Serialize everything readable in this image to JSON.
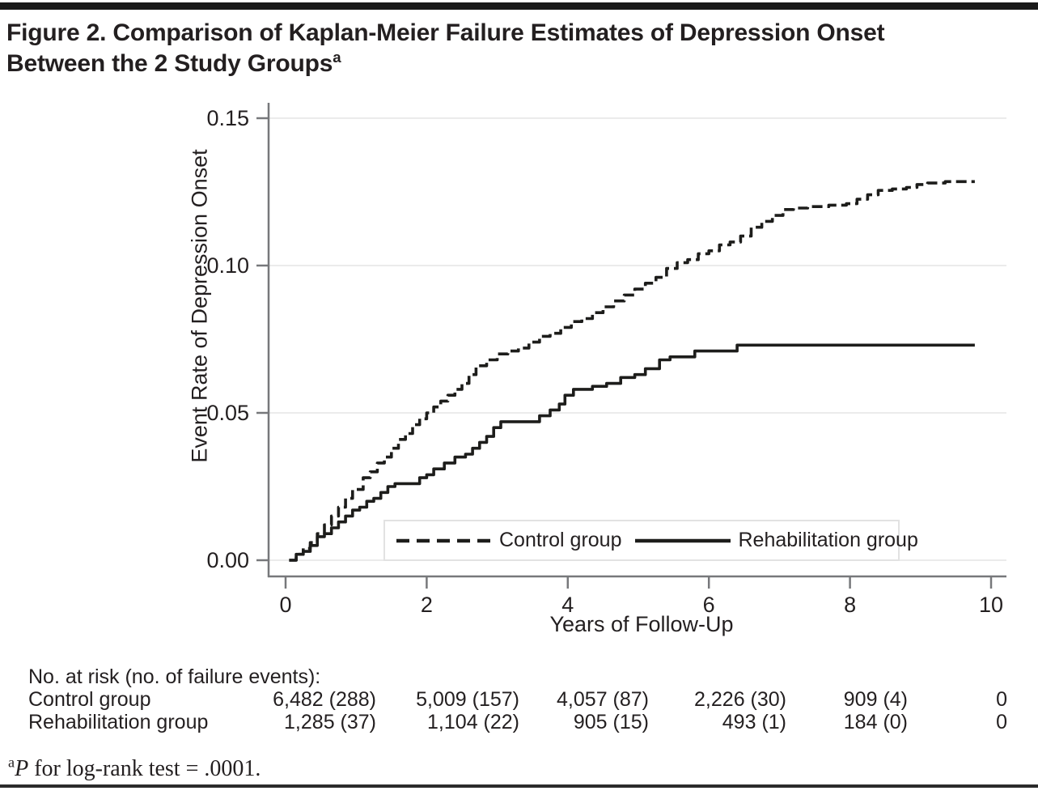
{
  "figure": {
    "title_line1": "Figure 2. Comparison of Kaplan-Meier Failure Estimates of Depression Onset",
    "title_line2": "Between the 2 Study Groups",
    "title_superscript": "a",
    "footnote": {
      "superscript": "a",
      "italic": "P",
      "text": " for log-rank test = .0001."
    }
  },
  "chart_data": {
    "type": "line",
    "variant": "kaplan-meier-failure-step",
    "xlabel": "Years of Follow-Up",
    "ylabel": "Event Rate of Depression Onset",
    "xlim": [
      0,
      10
    ],
    "ylim": [
      0,
      0.15
    ],
    "grid": "horizontal-light",
    "x_ticks": [
      {
        "value": 0,
        "label": "0"
      },
      {
        "value": 2,
        "label": "2"
      },
      {
        "value": 4,
        "label": "4"
      },
      {
        "value": 6,
        "label": "6"
      },
      {
        "value": 8,
        "label": "8"
      },
      {
        "value": 10,
        "label": "10"
      }
    ],
    "y_ticks": [
      {
        "value": 0.0,
        "label": "0.00"
      },
      {
        "value": 0.05,
        "label": "0.05"
      },
      {
        "value": 0.1,
        "label": "0.10"
      },
      {
        "value": 0.15,
        "label": "0.15"
      }
    ],
    "legend": {
      "position": "inside-bottom-boxed",
      "entries": [
        {
          "label": "Control group",
          "line_style": "dashed"
        },
        {
          "label": "Rehabilitation group",
          "line_style": "solid"
        }
      ]
    },
    "series": [
      {
        "name": "Control group",
        "line_style": "dashed",
        "color": "#1d1d1b",
        "points": [
          [
            0.05,
            0.0
          ],
          [
            0.15,
            0.002
          ],
          [
            0.25,
            0.004
          ],
          [
            0.35,
            0.006
          ],
          [
            0.45,
            0.009
          ],
          [
            0.55,
            0.012
          ],
          [
            0.65,
            0.015
          ],
          [
            0.75,
            0.018
          ],
          [
            0.85,
            0.021
          ],
          [
            0.95,
            0.024
          ],
          [
            1.1,
            0.028
          ],
          [
            1.2,
            0.03
          ],
          [
            1.3,
            0.033
          ],
          [
            1.4,
            0.035
          ],
          [
            1.5,
            0.038
          ],
          [
            1.6,
            0.041
          ],
          [
            1.7,
            0.043
          ],
          [
            1.8,
            0.046
          ],
          [
            1.9,
            0.048
          ],
          [
            2.0,
            0.05
          ],
          [
            2.1,
            0.052
          ],
          [
            2.2,
            0.054
          ],
          [
            2.3,
            0.056
          ],
          [
            2.4,
            0.058
          ],
          [
            2.5,
            0.06
          ],
          [
            2.6,
            0.063
          ],
          [
            2.7,
            0.066
          ],
          [
            2.85,
            0.068
          ],
          [
            3.0,
            0.07
          ],
          [
            3.15,
            0.071
          ],
          [
            3.3,
            0.072
          ],
          [
            3.45,
            0.074
          ],
          [
            3.6,
            0.076
          ],
          [
            3.75,
            0.077
          ],
          [
            3.9,
            0.079
          ],
          [
            4.05,
            0.081
          ],
          [
            4.2,
            0.082
          ],
          [
            4.35,
            0.084
          ],
          [
            4.5,
            0.086
          ],
          [
            4.65,
            0.088
          ],
          [
            4.8,
            0.09
          ],
          [
            4.95,
            0.092
          ],
          [
            5.1,
            0.094
          ],
          [
            5.25,
            0.096
          ],
          [
            5.4,
            0.099
          ],
          [
            5.55,
            0.101
          ],
          [
            5.7,
            0.102
          ],
          [
            5.85,
            0.104
          ],
          [
            6.0,
            0.105
          ],
          [
            6.15,
            0.107
          ],
          [
            6.3,
            0.108
          ],
          [
            6.45,
            0.11
          ],
          [
            6.6,
            0.113
          ],
          [
            6.75,
            0.115
          ],
          [
            6.9,
            0.117
          ],
          [
            7.05,
            0.119
          ],
          [
            7.2,
            0.1195
          ],
          [
            7.4,
            0.12
          ],
          [
            7.7,
            0.1205
          ],
          [
            7.95,
            0.121
          ],
          [
            8.1,
            0.1225
          ],
          [
            8.25,
            0.124
          ],
          [
            8.4,
            0.1255
          ],
          [
            8.6,
            0.126
          ],
          [
            8.8,
            0.1265
          ],
          [
            8.95,
            0.1275
          ],
          [
            9.1,
            0.128
          ],
          [
            9.35,
            0.1285
          ],
          [
            9.77,
            0.1285
          ]
        ]
      },
      {
        "name": "Rehabilitation group",
        "line_style": "solid",
        "color": "#1d1d1b",
        "points": [
          [
            0.05,
            0.0
          ],
          [
            0.15,
            0.002
          ],
          [
            0.25,
            0.003
          ],
          [
            0.35,
            0.005
          ],
          [
            0.45,
            0.008
          ],
          [
            0.55,
            0.009
          ],
          [
            0.65,
            0.011
          ],
          [
            0.75,
            0.013
          ],
          [
            0.85,
            0.015
          ],
          [
            0.95,
            0.017
          ],
          [
            1.05,
            0.018
          ],
          [
            1.15,
            0.02
          ],
          [
            1.25,
            0.021
          ],
          [
            1.35,
            0.023
          ],
          [
            1.45,
            0.025
          ],
          [
            1.55,
            0.026
          ],
          [
            1.9,
            0.028
          ],
          [
            2.0,
            0.029
          ],
          [
            2.1,
            0.031
          ],
          [
            2.25,
            0.033
          ],
          [
            2.4,
            0.035
          ],
          [
            2.55,
            0.036
          ],
          [
            2.65,
            0.038
          ],
          [
            2.75,
            0.04
          ],
          [
            2.85,
            0.042
          ],
          [
            2.95,
            0.045
          ],
          [
            3.05,
            0.047
          ],
          [
            3.6,
            0.049
          ],
          [
            3.75,
            0.051
          ],
          [
            3.88,
            0.053
          ],
          [
            3.96,
            0.056
          ],
          [
            4.08,
            0.058
          ],
          [
            4.35,
            0.059
          ],
          [
            4.55,
            0.06
          ],
          [
            4.75,
            0.062
          ],
          [
            4.95,
            0.063
          ],
          [
            5.1,
            0.065
          ],
          [
            5.3,
            0.068
          ],
          [
            5.45,
            0.069
          ],
          [
            5.8,
            0.071
          ],
          [
            6.4,
            0.073
          ],
          [
            9.77,
            0.073
          ]
        ]
      }
    ]
  },
  "risk_table": {
    "header": "No. at risk (no. of failure events):",
    "rows": [
      {
        "label": "Control group",
        "values": [
          "6,482 (288)",
          "5,009 (157)",
          "4,057 (87)",
          "2,226 (30)",
          "909 (4)",
          "0"
        ]
      },
      {
        "label": "Rehabilitation group",
        "values": [
          "1,285 (37)",
          "1,104 (22)",
          "905 (15)",
          "493 (1)",
          "184 (0)",
          "0"
        ]
      }
    ]
  },
  "colors": {
    "curve": "#1d1d1b",
    "axis": "#77787b",
    "grid": "#ebebeb",
    "text": "#231f20",
    "top_bar": "#1a1a1a",
    "bottom_rule": "#2b2b2b",
    "legend_border": "#e2e2e2"
  }
}
